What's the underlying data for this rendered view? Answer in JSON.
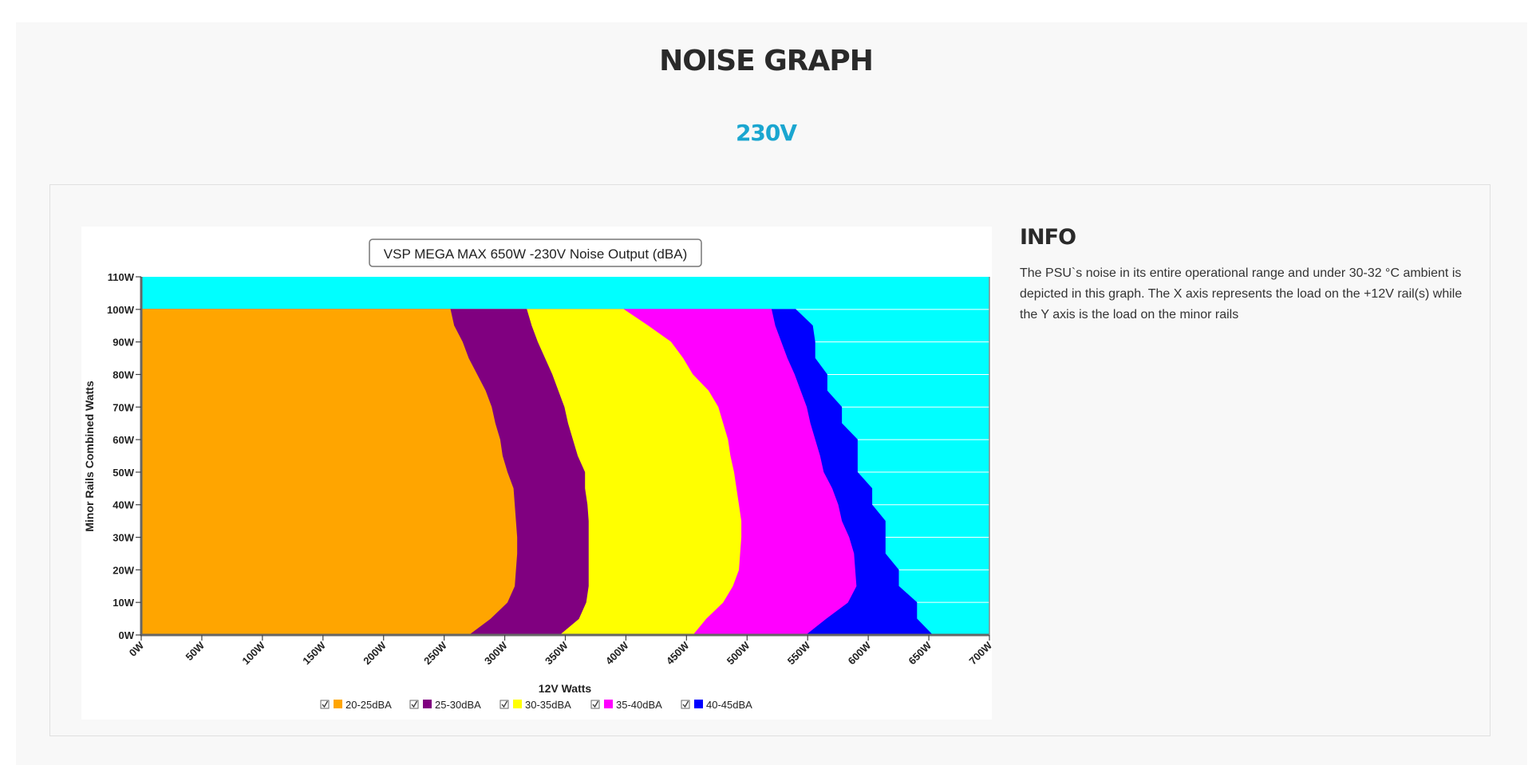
{
  "page": {
    "title": "NOISE GRAPH",
    "subtitle": "230V"
  },
  "info": {
    "heading": "INFO",
    "text": "The PSU`s noise in its entire operational range and under 30-32 °C ambient is depicted in this graph. The X axis represents the load on the +12V rail(s) while the Y axis is the load on the minor rails"
  },
  "colors": {
    "background": "#00ffff",
    "grid": "#ffffff"
  },
  "chart_data": {
    "type": "area",
    "title": "VSP MEGA MAX 650W -230V Noise Output (dBA)",
    "xlabel": "12V Watts",
    "ylabel": "Minor Rails Combined Watts",
    "xlim": [
      0,
      700
    ],
    "ylim": [
      0,
      110
    ],
    "x_tick_labels": [
      "0W",
      "50W",
      "100W",
      "150W",
      "200W",
      "250W",
      "300W",
      "350W",
      "400W",
      "450W",
      "500W",
      "550W",
      "600W",
      "650W",
      "700W"
    ],
    "y_tick_labels": [
      "0W",
      "10W",
      "20W",
      "30W",
      "40W",
      "50W",
      "60W",
      "70W",
      "80W",
      "90W",
      "100W",
      "110W"
    ],
    "y_values": [
      0,
      5,
      10,
      15,
      20,
      25,
      30,
      35,
      40,
      45,
      50,
      55,
      60,
      65,
      70,
      75,
      80,
      85,
      90,
      95,
      100
    ],
    "series": [
      {
        "name": "20-25dBA",
        "color": "#ffa500",
        "max_x": [
          270,
          288,
          302,
          308,
          309,
          310,
          310,
          309,
          308,
          307,
          302,
          298,
          296,
          292,
          289,
          284,
          277,
          270,
          265,
          258,
          255
        ]
      },
      {
        "name": "25-30dBA",
        "color": "#800080",
        "max_x": [
          345,
          361,
          367,
          369,
          369,
          369,
          369,
          369,
          368,
          366,
          366,
          360,
          356,
          352,
          349,
          344,
          339,
          333,
          327,
          322,
          318
        ]
      },
      {
        "name": "30-35dBA",
        "color": "#ffff00",
        "max_x": [
          455,
          466,
          480,
          488,
          493,
          494,
          495,
          495,
          493,
          491,
          489,
          486,
          484,
          480,
          476,
          468,
          455,
          447,
          437,
          418,
          398
        ]
      },
      {
        "name": "35-40dBA",
        "color": "#ff00ff",
        "max_x": [
          548,
          565,
          583,
          590,
          589,
          588,
          584,
          578,
          575,
          570,
          563,
          560,
          556,
          552,
          549,
          544,
          539,
          533,
          528,
          523,
          520
        ]
      },
      {
        "name": "40-45dBA",
        "color": "#0000ff",
        "max_x": [
          653,
          640,
          640,
          625,
          625,
          614,
          614,
          614,
          603,
          603,
          591,
          591,
          591,
          578,
          578,
          566,
          566,
          556,
          556,
          554,
          540
        ]
      }
    ],
    "legend_position": "bottom",
    "grid": true
  }
}
